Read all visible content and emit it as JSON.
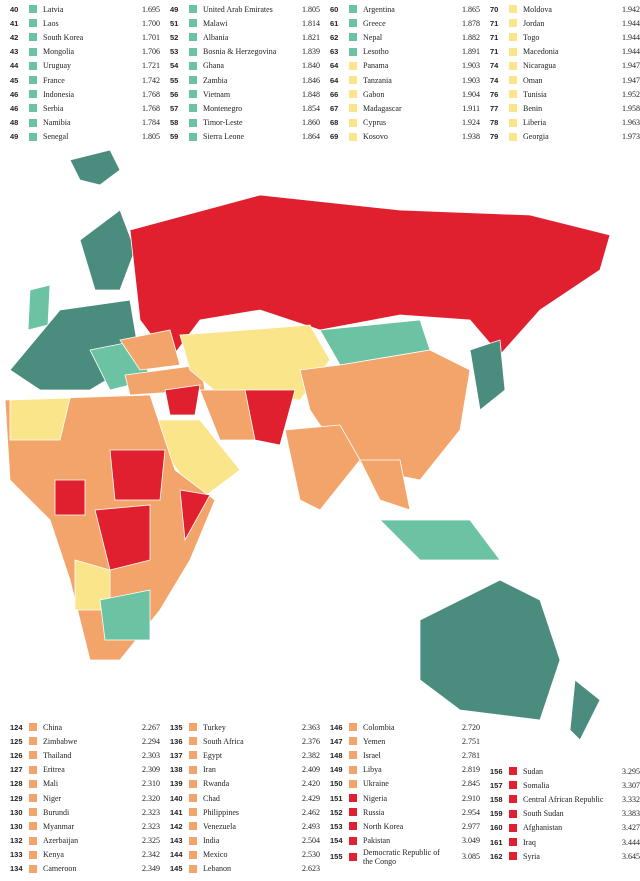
{
  "top_columns": [
    [
      {
        "rank": 40,
        "country": "Latvia",
        "score": "1.695",
        "color": "#6cc3a3"
      },
      {
        "rank": 41,
        "country": "Laos",
        "score": "1.700",
        "color": "#6cc3a3"
      },
      {
        "rank": 42,
        "country": "South Korea",
        "score": "1.701",
        "color": "#6cc3a3"
      },
      {
        "rank": 43,
        "country": "Mongolia",
        "score": "1.706",
        "color": "#6cc3a3"
      },
      {
        "rank": 44,
        "country": "Uruguay",
        "score": "1.721",
        "color": "#6cc3a3"
      },
      {
        "rank": 45,
        "country": "France",
        "score": "1.742",
        "color": "#6cc3a3"
      },
      {
        "rank": 46,
        "country": "Indonesia",
        "score": "1.768",
        "color": "#6cc3a3"
      },
      {
        "rank": 46,
        "country": "Serbia",
        "score": "1.768",
        "color": "#6cc3a3"
      },
      {
        "rank": 48,
        "country": "Namibia",
        "score": "1.784",
        "color": "#6cc3a3"
      },
      {
        "rank": 49,
        "country": "Senegal",
        "score": "1.805",
        "color": "#6cc3a3"
      }
    ],
    [
      {
        "rank": 49,
        "country": "United Arab Emirates",
        "score": "1.805",
        "color": "#6cc3a3"
      },
      {
        "rank": 51,
        "country": "Malawi",
        "score": "1.814",
        "color": "#6cc3a3"
      },
      {
        "rank": 52,
        "country": "Albania",
        "score": "1.821",
        "color": "#6cc3a3"
      },
      {
        "rank": 53,
        "country": "Bosnia & Herzegovina",
        "score": "1.839",
        "color": "#6cc3a3"
      },
      {
        "rank": 54,
        "country": "Ghana",
        "score": "1.840",
        "color": "#6cc3a3"
      },
      {
        "rank": 55,
        "country": "Zambia",
        "score": "1.846",
        "color": "#6cc3a3"
      },
      {
        "rank": 56,
        "country": "Vietnam",
        "score": "1.848",
        "color": "#6cc3a3"
      },
      {
        "rank": 57,
        "country": "Montenegro",
        "score": "1.854",
        "color": "#6cc3a3"
      },
      {
        "rank": 58,
        "country": "Timor-Leste",
        "score": "1.860",
        "color": "#6cc3a3"
      },
      {
        "rank": 59,
        "country": "Sierra Leone",
        "score": "1.864",
        "color": "#6cc3a3"
      }
    ],
    [
      {
        "rank": 60,
        "country": "Argentina",
        "score": "1.865",
        "color": "#6cc3a3"
      },
      {
        "rank": 61,
        "country": "Greece",
        "score": "1.878",
        "color": "#6cc3a3"
      },
      {
        "rank": 62,
        "country": "Nepal",
        "score": "1.882",
        "color": "#6cc3a3"
      },
      {
        "rank": 63,
        "country": "Lesotho",
        "score": "1.891",
        "color": "#6cc3a3"
      },
      {
        "rank": 64,
        "country": "Panama",
        "score": "1.903",
        "color": "#fbe58a"
      },
      {
        "rank": 64,
        "country": "Tanzania",
        "score": "1.903",
        "color": "#fbe58a"
      },
      {
        "rank": 66,
        "country": "Gabon",
        "score": "1.904",
        "color": "#fbe58a"
      },
      {
        "rank": 67,
        "country": "Madagascar",
        "score": "1.911",
        "color": "#fbe58a"
      },
      {
        "rank": 68,
        "country": "Cyprus",
        "score": "1.924",
        "color": "#fbe58a"
      },
      {
        "rank": 69,
        "country": "Kosovo",
        "score": "1.938",
        "color": "#fbe58a"
      }
    ],
    [
      {
        "rank": 70,
        "country": "Moldova",
        "score": "1.942",
        "color": "#fbe58a"
      },
      {
        "rank": 71,
        "country": "Jordan",
        "score": "1.944",
        "color": "#fbe58a"
      },
      {
        "rank": 71,
        "country": "Togo",
        "score": "1.944",
        "color": "#fbe58a"
      },
      {
        "rank": 71,
        "country": "Macedonia",
        "score": "1.944",
        "color": "#fbe58a"
      },
      {
        "rank": 74,
        "country": "Nicaragua",
        "score": "1.947",
        "color": "#fbe58a"
      },
      {
        "rank": 74,
        "country": "Oman",
        "score": "1.947",
        "color": "#fbe58a"
      },
      {
        "rank": 76,
        "country": "Tunisia",
        "score": "1.952",
        "color": "#fbe58a"
      },
      {
        "rank": 77,
        "country": "Benin",
        "score": "1.958",
        "color": "#fbe58a"
      },
      {
        "rank": 78,
        "country": "Liberia",
        "score": "1.963",
        "color": "#fbe58a"
      },
      {
        "rank": 79,
        "country": "Georgia",
        "score": "1.973",
        "color": "#fbe58a"
      }
    ]
  ],
  "bottom_columns": [
    [
      {
        "rank": 124,
        "country": "China",
        "score": "2.267",
        "color": "#f3a46b"
      },
      {
        "rank": 125,
        "country": "Zimbabwe",
        "score": "2.294",
        "color": "#f3a46b"
      },
      {
        "rank": 126,
        "country": "Thailand",
        "score": "2.303",
        "color": "#f3a46b"
      },
      {
        "rank": 127,
        "country": "Eritrea",
        "score": "2.309",
        "color": "#f3a46b"
      },
      {
        "rank": 128,
        "country": "Mali",
        "score": "2.310",
        "color": "#f3a46b"
      },
      {
        "rank": 129,
        "country": "Niger",
        "score": "2.320",
        "color": "#f3a46b"
      },
      {
        "rank": 130,
        "country": "Burundi",
        "score": "2.323",
        "color": "#f3a46b"
      },
      {
        "rank": 130,
        "country": "Myanmar",
        "score": "2.323",
        "color": "#f3a46b"
      },
      {
        "rank": 132,
        "country": "Azerbaijan",
        "score": "2.325",
        "color": "#f3a46b"
      },
      {
        "rank": 133,
        "country": "Kenya",
        "score": "2.342",
        "color": "#f3a46b"
      },
      {
        "rank": 134,
        "country": "Cameroon",
        "score": "2.349",
        "color": "#f3a46b"
      }
    ],
    [
      {
        "rank": 135,
        "country": "Turkey",
        "score": "2.363",
        "color": "#f3a46b"
      },
      {
        "rank": 136,
        "country": "South Africa",
        "score": "2.376",
        "color": "#f3a46b"
      },
      {
        "rank": 137,
        "country": "Egypt",
        "score": "2.382",
        "color": "#f3a46b"
      },
      {
        "rank": 138,
        "country": "Iran",
        "score": "2.409",
        "color": "#f3a46b"
      },
      {
        "rank": 139,
        "country": "Rwanda",
        "score": "2.420",
        "color": "#f3a46b"
      },
      {
        "rank": 140,
        "country": "Chad",
        "score": "2.429",
        "color": "#f3a46b"
      },
      {
        "rank": 141,
        "country": "Philippines",
        "score": "2.462",
        "color": "#f3a46b"
      },
      {
        "rank": 142,
        "country": "Venezuela",
        "score": "2.493",
        "color": "#f3a46b"
      },
      {
        "rank": 143,
        "country": "India",
        "score": "2.504",
        "color": "#f3a46b"
      },
      {
        "rank": 144,
        "country": "Mexico",
        "score": "2.530",
        "color": "#f3a46b"
      },
      {
        "rank": 145,
        "country": "Lebanon",
        "score": "2.623",
        "color": "#f3a46b"
      }
    ],
    [
      {
        "rank": 146,
        "country": "Colombia",
        "score": "2.720",
        "color": "#f3a46b"
      },
      {
        "rank": 147,
        "country": "Yemen",
        "score": "2.751",
        "color": "#f3a46b"
      },
      {
        "rank": 148,
        "country": "Israel",
        "score": "2.781",
        "color": "#f3a46b"
      },
      {
        "rank": 149,
        "country": "Libya",
        "score": "2.819",
        "color": "#f3a46b"
      },
      {
        "rank": 150,
        "country": "Ukraine",
        "score": "2.845",
        "color": "#f3a46b"
      },
      {
        "rank": 151,
        "country": "Nigeria",
        "score": "2.910",
        "color": "#e0202f"
      },
      {
        "rank": 152,
        "country": "Russia",
        "score": "2.954",
        "color": "#e0202f"
      },
      {
        "rank": 153,
        "country": "North Korea",
        "score": "2.977",
        "color": "#e0202f"
      },
      {
        "rank": 154,
        "country": "Pakistan",
        "score": "3.049",
        "color": "#e0202f"
      },
      {
        "rank": 155,
        "country": "Democratic Republic of the Congo",
        "score": "3.085",
        "color": "#e0202f"
      }
    ],
    [
      {
        "rank": 156,
        "country": "Sudan",
        "score": "3.295",
        "color": "#e0202f"
      },
      {
        "rank": 157,
        "country": "Somalia",
        "score": "3.307",
        "color": "#e0202f"
      },
      {
        "rank": 158,
        "country": "Central African Republic",
        "score": "3.332",
        "color": "#e0202f"
      },
      {
        "rank": 159,
        "country": "South Sudan",
        "score": "3.383",
        "color": "#e0202f"
      },
      {
        "rank": 160,
        "country": "Afghanistan",
        "score": "3.427",
        "color": "#e0202f"
      },
      {
        "rank": 161,
        "country": "Iraq",
        "score": "3.444",
        "color": "#e0202f"
      },
      {
        "rank": 162,
        "country": "Syria",
        "score": "3.645",
        "color": "#e0202f"
      }
    ]
  ]
}
